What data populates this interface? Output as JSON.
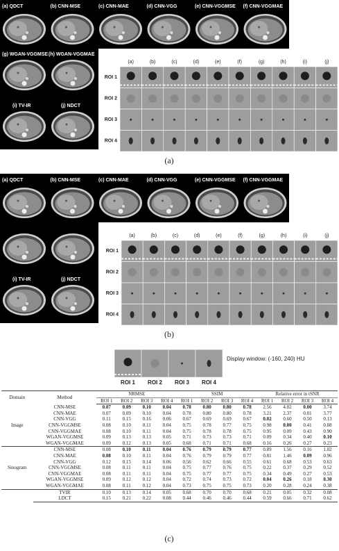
{
  "panel_a": {
    "top_labels": [
      "(a) QDCT",
      "(b) CNN-MSE",
      "(c) CNN-MAE",
      "(d) CNN-VGG",
      "(e) CNN-VGGMSE",
      "(f) CNN-VGGMAE"
    ],
    "bottom_labels": [
      "(g) WGAN-VGGMSE",
      "(h) WGAN-VGGMAE",
      "(i) TV-IR",
      "(j) NDCT"
    ],
    "roi_columns": [
      "(a)",
      "(b)",
      "(c)",
      "(d)",
      "(e)",
      "(f)",
      "(g)",
      "(h)",
      "(i)",
      "(j)"
    ],
    "roi_rows": [
      "ROI 1",
      "ROI 2",
      "ROI 3",
      "ROI 4"
    ],
    "caption": "(a)"
  },
  "panel_b": {
    "top_labels": [
      "(a) QDCT",
      "(b) CNN-MSE",
      "(c) CNN-MAE",
      "(d) CNN-VGG",
      "(e) CNN-VGGMSE",
      "(f) CNN-VGGMAE"
    ],
    "bottom_labels": [
      "(i) TV-IR",
      "(j) NDCT"
    ],
    "roi_columns": [
      "(a)",
      "(b)",
      "(c)",
      "(d)",
      "(e)",
      "(f)",
      "(g)",
      "(h)",
      "(i)",
      "(j)"
    ],
    "roi_rows": [
      "ROI 1",
      "ROI 2",
      "ROI 3",
      "ROI 4"
    ],
    "caption": "(b)"
  },
  "panel_c": {
    "display_window": "Display window: (-160, 240) HU",
    "roi_labels": [
      "ROI 1",
      "ROI 2",
      "ROI 3",
      "ROI 4"
    ],
    "table": {
      "headers": [
        "Domain",
        "Method"
      ],
      "metric_headers": [
        "NRMSE",
        "SSIM",
        "Relative error in tSNR"
      ],
      "sub_headers": [
        "ROI 1",
        "ROI 2",
        "ROI 3",
        "ROI 4"
      ],
      "groups": [
        {
          "domain": "Image",
          "rows": [
            {
              "method": "CNN-MSE",
              "cells": [
                {
                  "text": "0.07",
                  "bold": true
                },
                {
                  "text": "0.09",
                  "bold": true
                },
                {
                  "text": "0.10",
                  "bold": true
                },
                {
                  "text": "0.04",
                  "bold": true
                },
                {
                  "text": "0.78",
                  "bold": true
                },
                {
                  "text": "0.80",
                  "bold": true
                },
                {
                  "text": "0.80",
                  "bold": true
                },
                {
                  "text": "0.78",
                  "bold": true
                },
                "2.56",
                "4.02",
                {
                  "text": "0.00",
                  "bold": true
                },
                "3.74"
              ]
            },
            {
              "method": "CNN-MAE",
              "cells": [
                "0.07",
                "0.09",
                "0.10",
                "0.04",
                "0.78",
                "0.80",
                "0.80",
                "0.78",
                "3.21",
                "2.37",
                "0.01",
                "3.77"
              ]
            },
            {
              "method": "CNN-VGG",
              "cells": [
                "0.11",
                "0.15",
                "0.16",
                "0.06",
                "0.67",
                "0.69",
                "0.69",
                "0.67",
                {
                  "text": "0.02",
                  "bold": true
                },
                "0.60",
                "0.50",
                "0.13"
              ]
            },
            {
              "method": "CNN-VGGMSE",
              "cells": [
                "0.08",
                "0.10",
                "0.11",
                "0.04",
                "0.75",
                "0.78",
                "0.77",
                "0.75",
                "0.98",
                {
                  "text": "0.00",
                  "bold": true
                },
                "0.41",
                "0.88"
              ]
            },
            {
              "method": "CNN-VGGMAE",
              "cells": [
                "0.08",
                "0.10",
                "0.11",
                "0.04",
                "0.75",
                "0.78",
                "0.78",
                "0.75",
                "0.95",
                "0.09",
                "0.43",
                "0.90"
              ]
            },
            {
              "method": "WGAN-VGGMSE",
              "cells": [
                "0.09",
                "0.13",
                "0.13",
                "0.05",
                "0.71",
                "0.73",
                "0.73",
                "0.71",
                "0.09",
                "0.34",
                "0.40",
                {
                  "text": "0.10",
                  "bold": true
                }
              ]
            },
            {
              "method": "WGAN-VGGMAE",
              "cells": [
                "0.09",
                "0.12",
                "0.13",
                "0.05",
                "0.68",
                "0.71",
                "0.71",
                "0.68",
                "0.16",
                "0.26",
                "0.27",
                "0.23"
              ]
            }
          ]
        },
        {
          "domain": "Sinogram",
          "rows": [
            {
              "method": "CNN-MSE",
              "cells": [
                "0.08",
                {
                  "text": "0.10",
                  "bold": true
                },
                {
                  "text": "0.11",
                  "bold": true
                },
                {
                  "text": "0.04",
                  "bold": true
                },
                {
                  "text": "0.76",
                  "bold": true
                },
                {
                  "text": "0.79",
                  "bold": true
                },
                {
                  "text": "0.79",
                  "bold": true
                },
                {
                  "text": "0.77",
                  "bold": true
                },
                "0.89",
                "1.56",
                "0.16",
                "1.02"
              ]
            },
            {
              "method": "CNN-MAE",
              "cells": [
                {
                  "text": "0.08",
                  "bold": true
                },
                "0.10",
                "0.11",
                "0.04",
                "0.76",
                "0.79",
                "0.79",
                "0.77",
                "0.81",
                "1.46",
                {
                  "text": "0.09",
                  "bold": true
                },
                "0.96"
              ]
            },
            {
              "method": "CNN-VGG",
              "cells": [
                "0.12",
                "0.15",
                "0.14",
                "0.06",
                "0.56",
                "0.62",
                "0.66",
                "0.55",
                "0.61",
                "0.68",
                "0.53",
                "0.63"
              ]
            },
            {
              "method": "CNN-VGGMSE",
              "cells": [
                "0.08",
                "0.11",
                "0.11",
                "0.04",
                "0.75",
                "0.77",
                "0.76",
                "0.75",
                "0.22",
                "0.37",
                "0.29",
                "0.52"
              ]
            },
            {
              "method": "CNN-VGGMAE",
              "cells": [
                "0.08",
                "0.11",
                "0.11",
                "0.04",
                "0.75",
                "0.77",
                "0.77",
                "0.75",
                "0.34",
                "0.49",
                "0.27",
                "0.53"
              ]
            },
            {
              "method": "WGAN-VGGMSE",
              "cells": [
                "0.09",
                "0.12",
                "0.12",
                "0.04",
                "0.72",
                "0.74",
                "0.73",
                "0.72",
                {
                  "text": "0.04",
                  "bold": true
                },
                {
                  "text": "0.26",
                  "bold": true
                },
                "0.18",
                {
                  "text": "0.30",
                  "bold": true
                }
              ]
            },
            {
              "method": "WGAN-VGGMAE",
              "cells": [
                "0.08",
                "0.11",
                "0.12",
                "0.04",
                "0.73",
                "0.75",
                "0.75",
                "0.73",
                "0.20",
                "0.28",
                "0.24",
                "0.38"
              ]
            }
          ]
        },
        {
          "rows": [
            {
              "method": "TVIR",
              "cells": [
                "0.10",
                "0.13",
                "0.14",
                "0.05",
                "0.68",
                "0.70",
                "0.70",
                "0.68",
                "0.21",
                "0.05",
                "0.32",
                "0.08"
              ]
            },
            {
              "method": "LDCT",
              "cells": [
                "0.15",
                "0.21",
                "0.22",
                "0.08",
                "0.44",
                "0.46",
                "0.46",
                "0.44",
                "0.59",
                "0.66",
                "0.71",
                "0.62"
              ]
            }
          ]
        }
      ]
    },
    "caption": "(c)"
  }
}
